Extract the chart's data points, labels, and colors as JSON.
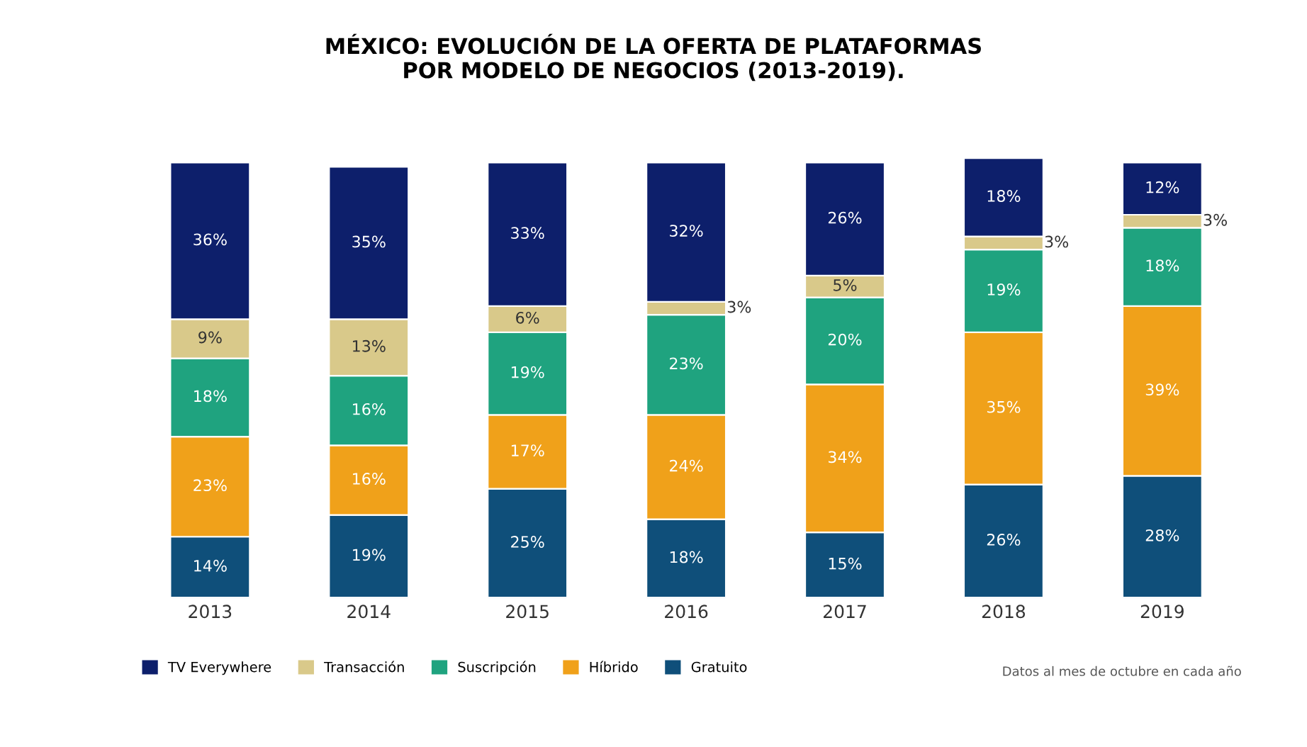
{
  "chart_data": {
    "type": "bar",
    "title": "MÉXICO: EVOLUCIÓN DE LA OFERTA DE PLATAFORMAS\nPOR MODELO DE NEGOCIOS (2013-2019).",
    "categories": [
      "2013",
      "2014",
      "2015",
      "2016",
      "2017",
      "2018",
      "2019"
    ],
    "stacked": true,
    "legend": "bottom left",
    "grid": false,
    "series": [
      {
        "name": "Gratuito",
        "color": "#0f4f7a",
        "values": [
          14,
          19,
          25,
          18,
          15,
          26,
          28
        ],
        "value_labels": [
          "14%",
          "19%",
          "25%",
          "18%",
          "15%",
          "26%",
          "28%"
        ]
      },
      {
        "name": "Híbrido",
        "color": "#f0a11a",
        "values": [
          23,
          16,
          17,
          24,
          34,
          35,
          39
        ],
        "value_labels": [
          "23%",
          "16%",
          "17%",
          "24%",
          "34%",
          "35%",
          "39%"
        ]
      },
      {
        "name": "Suscripción",
        "color": "#1fa37f",
        "values": [
          18,
          16,
          19,
          23,
          20,
          19,
          18
        ],
        "value_labels": [
          "18%",
          "16%",
          "19%",
          "23%",
          "20%",
          "19%",
          "18%"
        ]
      },
      {
        "name": "Transacción",
        "color": "#d9c98a",
        "values": [
          9,
          13,
          6,
          3,
          5,
          3,
          3
        ],
        "value_labels": [
          "9%",
          "13%",
          "6%",
          "3%",
          "5%",
          "3%",
          "3%"
        ]
      },
      {
        "name": "TV Everywhere",
        "color": "#0d1f6b",
        "values": [
          36,
          35,
          33,
          32,
          26,
          18,
          12
        ],
        "value_labels": [
          "36%",
          "35%",
          "33%",
          "32%",
          "26%",
          "18%",
          "12%"
        ]
      }
    ],
    "annotations": [
      "Datos al mes de octubre en cada año"
    ]
  }
}
